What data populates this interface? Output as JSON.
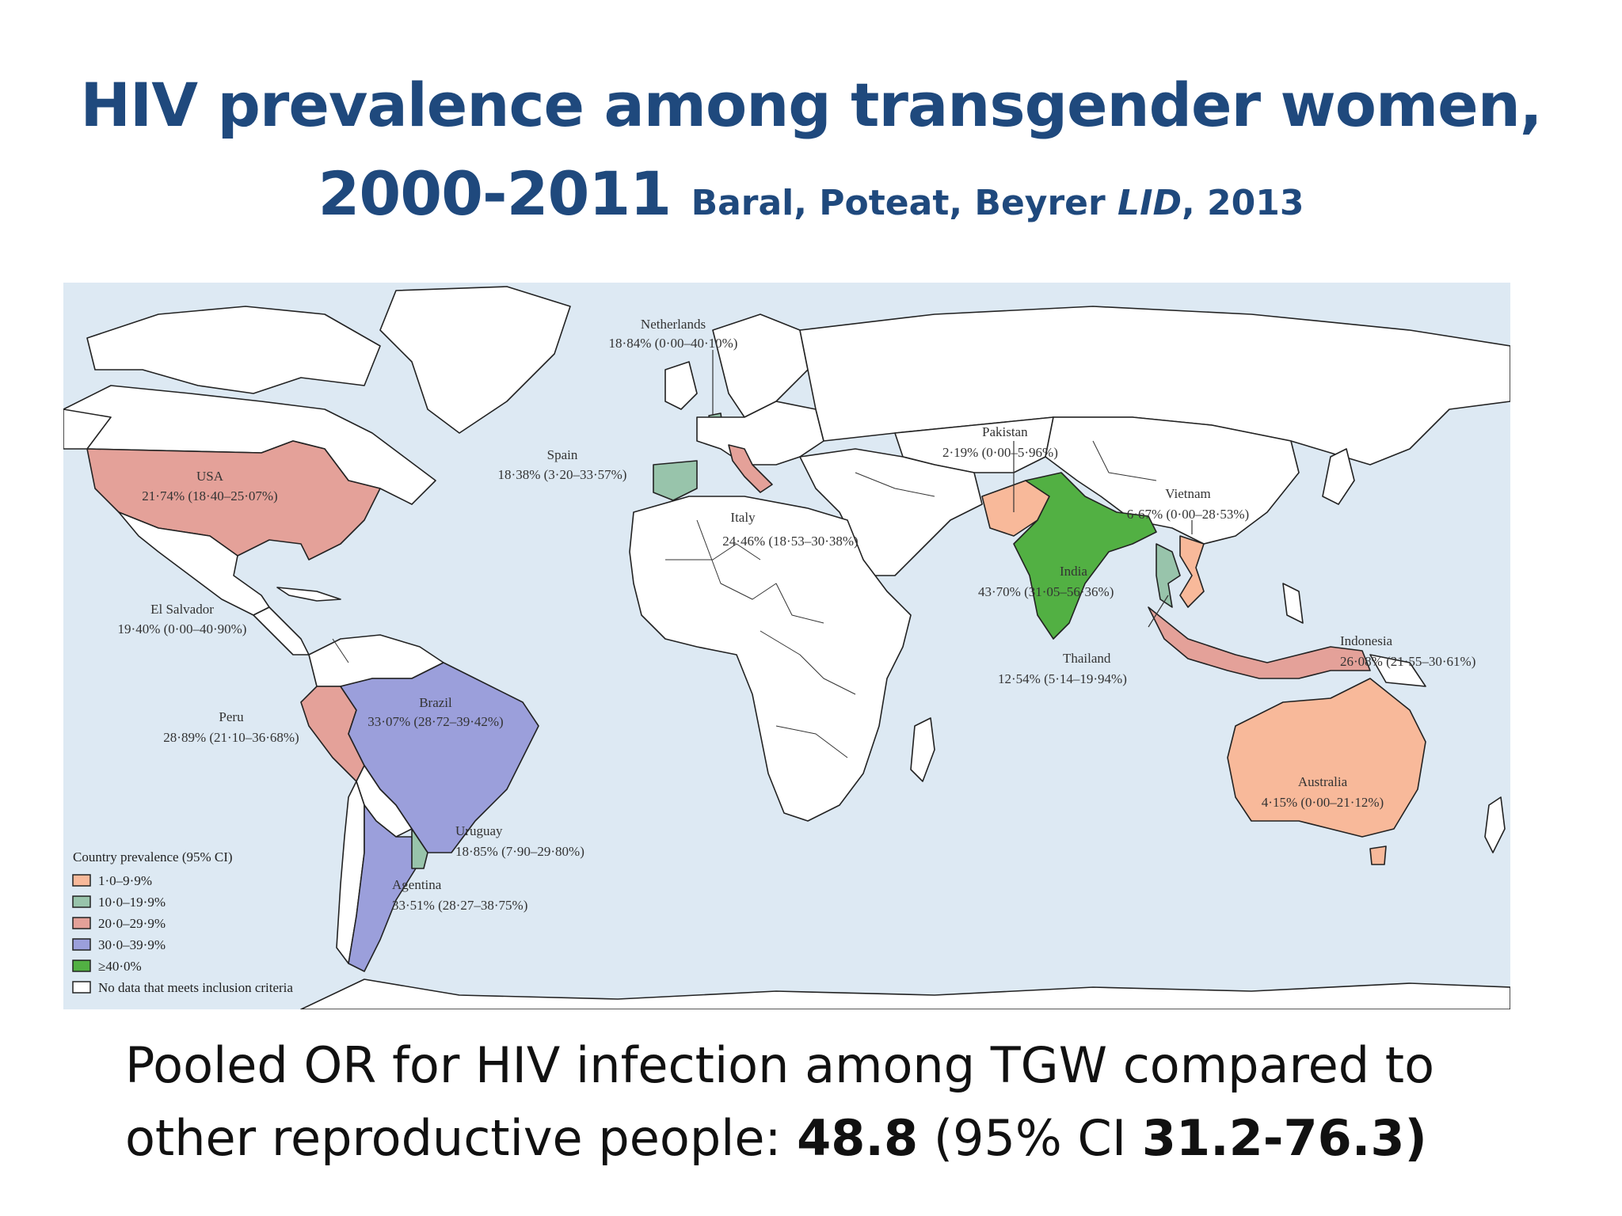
{
  "title": {
    "line1": "HIV prevalence among transgender women,",
    "line2": "2000-2011",
    "citation_authors": "Baral, Poteat, Beyrer",
    "citation_journal": "LID",
    "citation_year": ", 2013"
  },
  "map": {
    "countries": [
      {
        "name": "USA",
        "value": "21·74% (18·40–25·07%)",
        "category": "20·0–29·9%"
      },
      {
        "name": "El Salvador",
        "value": "19·40% (0·00–40·90%)",
        "category": "10·0–19·9%"
      },
      {
        "name": "Peru",
        "value": "28·89% (21·10–36·68%)",
        "category": "20·0–29·9%"
      },
      {
        "name": "Brazil",
        "value": "33·07% (28·72–39·42%)",
        "category": "30·0–39·9%"
      },
      {
        "name": "Uruguay",
        "value": "18·85% (7·90–29·80%)",
        "category": "10·0–19·9%"
      },
      {
        "name": "Agentina",
        "value": "33·51% (28·27–38·75%)",
        "category": "30·0–39·9%"
      },
      {
        "name": "Netherlands",
        "value": "18·84% (0·00–40·10%)",
        "category": "10·0–19·9%"
      },
      {
        "name": "Spain",
        "value": "18·38% (3·20–33·57%)",
        "category": "10·0–19·9%"
      },
      {
        "name": "Italy",
        "value": "24·46% (18·53–30·38%)",
        "category": "20·0–29·9%"
      },
      {
        "name": "Pakistan",
        "value": "2·19% (0·00–5·96%)",
        "category": "1·0–9·9%"
      },
      {
        "name": "India",
        "value": "43·70% (31·05–56·36%)",
        "category": "≥40·0%"
      },
      {
        "name": "Thailand",
        "value": "12·54% (5·14–19·94%)",
        "category": "10·0–19·9%"
      },
      {
        "name": "Vietnam",
        "value": "6·67% (0·00–28·53%)",
        "category": "1·0–9·9%"
      },
      {
        "name": "Indonesia",
        "value": "26·08% (21·55–30·61%)",
        "category": "20·0–29·9%"
      },
      {
        "name": "Australia",
        "value": "4·15% (0·00–21·12%)",
        "category": "1·0–9·9%"
      }
    ],
    "legend": {
      "title": "Country prevalence (95% CI)",
      "items": [
        {
          "label": "1·0–9·9%",
          "color": "#f8b99a"
        },
        {
          "label": "10·0–19·9%",
          "color": "#98c4ab"
        },
        {
          "label": "20·0–29·9%",
          "color": "#e4a199"
        },
        {
          "label": "30·0–39·9%",
          "color": "#9b9fdb"
        },
        {
          "label": "≥40·0%",
          "color": "#52b043"
        },
        {
          "label": "No data that meets inclusion criteria",
          "color": "#ffffff"
        }
      ]
    },
    "ocean_color": "#dde9f3"
  },
  "pooled": {
    "text1": "Pooled OR for HIV infection among TGW compared to",
    "text2": "other reproductive people:  ",
    "or_value": "48.8",
    "ci_open": " (95% CI ",
    "ci_range": "31.2-76.3",
    "ci_close": ")"
  }
}
